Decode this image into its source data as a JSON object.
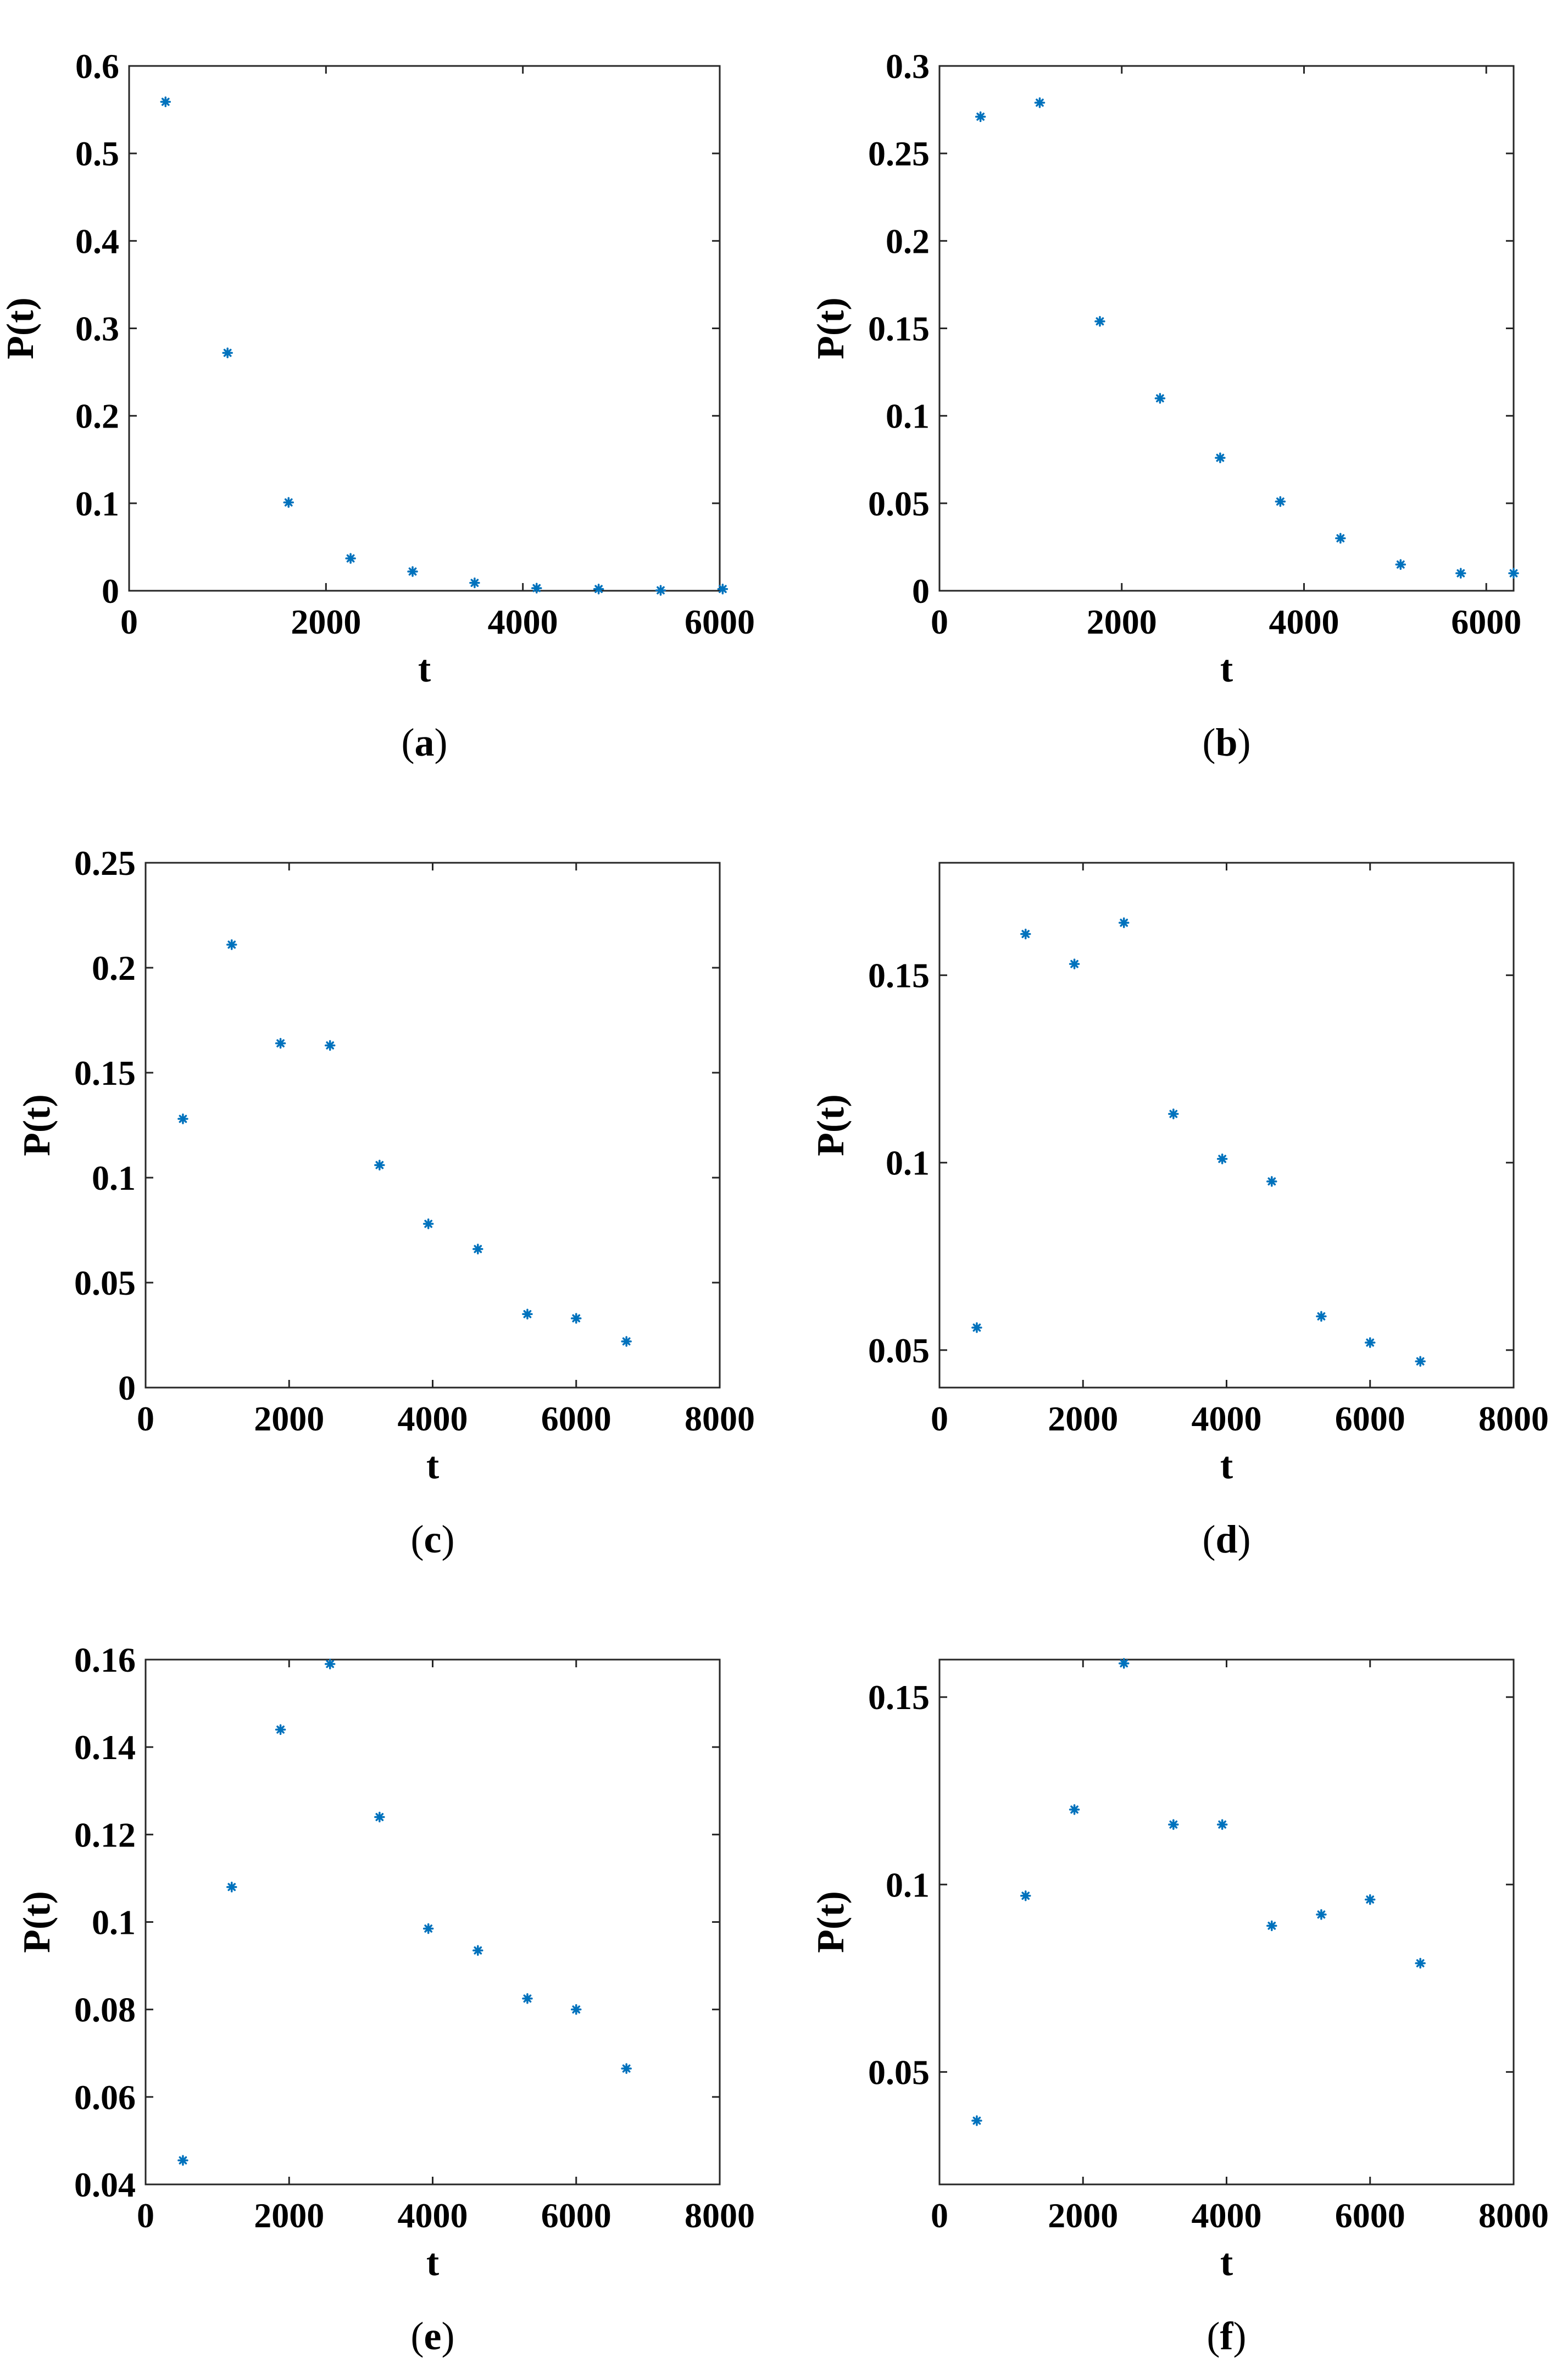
{
  "chart_data": [
    {
      "type": "scatter",
      "panel": "a",
      "caption": "a",
      "xlabel": "t",
      "ylabel": "P(t)",
      "xlim": [
        0,
        6000
      ],
      "ylim": [
        0,
        0.6
      ],
      "xticks": [
        0,
        2000,
        4000,
        6000
      ],
      "xtick_labels": [
        "0",
        "2000",
        "4000",
        "6000"
      ],
      "yticks": [
        0,
        0.1,
        0.2,
        0.3,
        0.4,
        0.5,
        0.6
      ],
      "ytick_labels": [
        "0",
        "0.1",
        "0.2",
        "0.3",
        "0.4",
        "0.5",
        "0.6"
      ],
      "grid": false,
      "marker_color": "#0072bd",
      "series": [
        {
          "x": [
            370,
            1000,
            1620,
            2250,
            2880,
            3510,
            4140,
            4770,
            5400,
            6030
          ],
          "y": [
            0.559,
            0.272,
            0.101,
            0.037,
            0.022,
            0.009,
            0.003,
            0.002,
            0.0005,
            0.002
          ]
        }
      ]
    },
    {
      "type": "scatter",
      "panel": "b",
      "caption": "b",
      "xlabel": "t",
      "ylabel": "P(t)",
      "xlim": [
        0,
        6300
      ],
      "ylim": [
        0,
        0.3
      ],
      "xticks": [
        0,
        2000,
        4000,
        6000
      ],
      "xtick_labels": [
        "0",
        "2000",
        "4000",
        "6000"
      ],
      "yticks": [
        0,
        0.05,
        0.1,
        0.15,
        0.2,
        0.25,
        0.3
      ],
      "ytick_labels": [
        "0",
        "0.05",
        "0.1",
        "0.15",
        "0.2",
        "0.25",
        "0.3"
      ],
      "grid": false,
      "marker_color": "#0072bd",
      "series": [
        {
          "x": [
            450,
            1100,
            1760,
            2420,
            3080,
            3740,
            4400,
            5060,
            5720,
            6300
          ],
          "y": [
            0.271,
            0.279,
            0.154,
            0.11,
            0.076,
            0.051,
            0.03,
            0.015,
            0.01,
            0.01
          ]
        }
      ]
    },
    {
      "type": "scatter",
      "panel": "c",
      "caption": "c",
      "xlabel": "t",
      "ylabel": "P(t)",
      "xlim": [
        0,
        8000
      ],
      "ylim": [
        0,
        0.25
      ],
      "xticks": [
        0,
        2000,
        4000,
        6000,
        8000
      ],
      "xtick_labels": [
        "0",
        "2000",
        "4000",
        "6000",
        "8000"
      ],
      "yticks": [
        0,
        0.05,
        0.1,
        0.15,
        0.2,
        0.25
      ],
      "ytick_labels": [
        "0",
        "0.05",
        "0.1",
        "0.15",
        "0.2",
        "0.25"
      ],
      "grid": false,
      "marker_color": "#0072bd",
      "series": [
        {
          "x": [
            520,
            1200,
            1880,
            2570,
            3260,
            3940,
            4630,
            5320,
            6000,
            6700
          ],
          "y": [
            0.128,
            0.211,
            0.164,
            0.163,
            0.106,
            0.078,
            0.066,
            0.035,
            0.033,
            0.022
          ]
        }
      ]
    },
    {
      "type": "scatter",
      "panel": "d",
      "caption": "d",
      "xlabel": "t",
      "ylabel": "P(t)",
      "xlim": [
        0,
        8000
      ],
      "ylim": [
        0.04,
        0.18
      ],
      "xticks": [
        0,
        2000,
        4000,
        6000,
        8000
      ],
      "xtick_labels": [
        "0",
        "2000",
        "4000",
        "6000",
        "8000"
      ],
      "yticks": [
        0.05,
        0.1,
        0.15
      ],
      "ytick_labels": [
        "0.05",
        "0.1",
        "0.15"
      ],
      "grid": false,
      "marker_color": "#0072bd",
      "series": [
        {
          "x": [
            520,
            1200,
            1880,
            2570,
            3260,
            3940,
            4630,
            5320,
            6000,
            6700
          ],
          "y": [
            0.056,
            0.161,
            0.153,
            0.164,
            0.113,
            0.101,
            0.095,
            0.059,
            0.052,
            0.047
          ]
        }
      ]
    },
    {
      "type": "scatter",
      "panel": "e",
      "caption": "e",
      "xlabel": "t",
      "ylabel": "P(t)",
      "xlim": [
        0,
        8000
      ],
      "ylim": [
        0.04,
        0.16
      ],
      "xticks": [
        0,
        2000,
        4000,
        6000,
        8000
      ],
      "xtick_labels": [
        "0",
        "2000",
        "4000",
        "6000",
        "8000"
      ],
      "yticks": [
        0.04,
        0.06,
        0.08,
        0.1,
        0.12,
        0.14,
        0.16
      ],
      "ytick_labels": [
        "0.04",
        "0.06",
        "0.08",
        "0.1",
        "0.12",
        "0.14",
        "0.16"
      ],
      "grid": false,
      "marker_color": "#0072bd",
      "series": [
        {
          "x": [
            520,
            1200,
            1880,
            2570,
            3260,
            3940,
            4630,
            5320,
            6000,
            6700
          ],
          "y": [
            0.0455,
            0.108,
            0.144,
            0.159,
            0.124,
            0.0985,
            0.0935,
            0.0825,
            0.08,
            0.0665
          ]
        }
      ]
    },
    {
      "type": "scatter",
      "panel": "f",
      "caption": "f",
      "xlabel": "t",
      "ylabel": "P(t)",
      "xlim": [
        0,
        8000
      ],
      "ylim": [
        0.02,
        0.16
      ],
      "xticks": [
        0,
        2000,
        4000,
        6000,
        8000
      ],
      "xtick_labels": [
        "0",
        "2000",
        "4000",
        "6000",
        "8000"
      ],
      "yticks": [
        0.05,
        0.1,
        0.15
      ],
      "ytick_labels": [
        "0.05",
        "0.1",
        "0.15"
      ],
      "grid": false,
      "marker_color": "#0072bd",
      "series": [
        {
          "x": [
            520,
            1200,
            1880,
            2570,
            3260,
            3940,
            4630,
            5320,
            6000,
            6700
          ],
          "y": [
            0.037,
            0.097,
            0.12,
            0.159,
            0.116,
            0.116,
            0.089,
            0.092,
            0.096,
            0.079
          ]
        }
      ]
    }
  ]
}
